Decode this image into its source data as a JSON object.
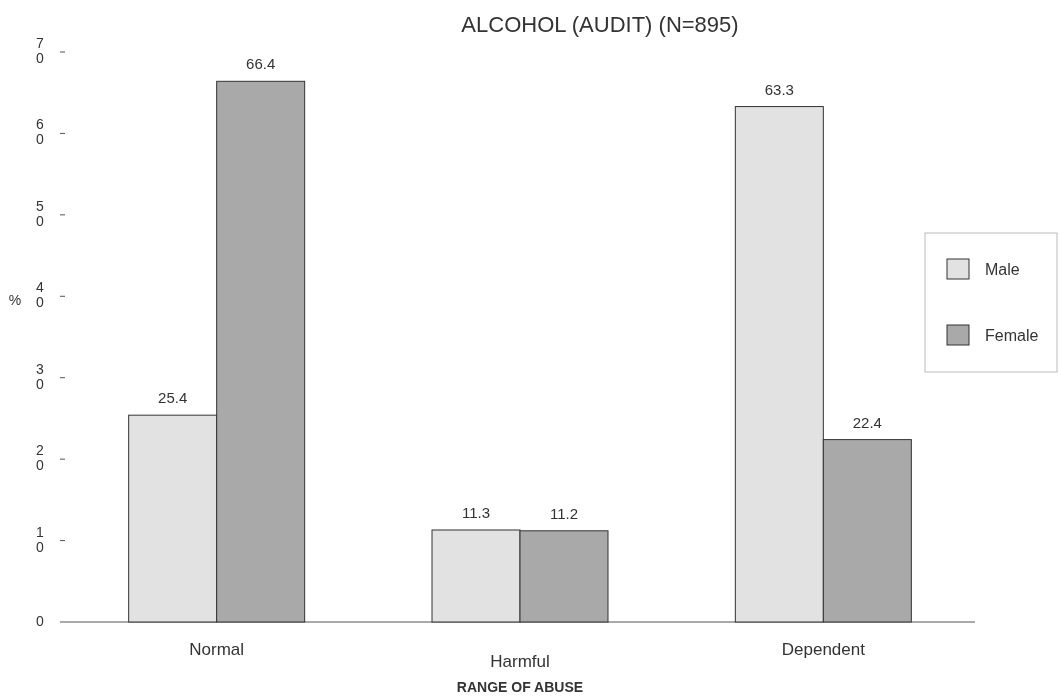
{
  "chart_data": {
    "type": "bar",
    "title": "ALCOHOL (AUDIT) (N=895)",
    "xlabel": "RANGE OF ABUSE",
    "ylabel": "%",
    "categories": [
      "Normal",
      "Harmful",
      "Dependent"
    ],
    "series": [
      {
        "name": "Male",
        "color": "#e2e2e2",
        "values": [
          25.4,
          11.3,
          63.3
        ]
      },
      {
        "name": "Female",
        "color": "#a9a9a9",
        "values": [
          66.4,
          11.2,
          22.4
        ]
      }
    ],
    "ylim": [
      0,
      70
    ],
    "yticks": [
      0,
      10,
      20,
      30,
      40,
      50,
      60,
      70
    ],
    "data_labels": true,
    "legend": "right",
    "grid": false
  }
}
